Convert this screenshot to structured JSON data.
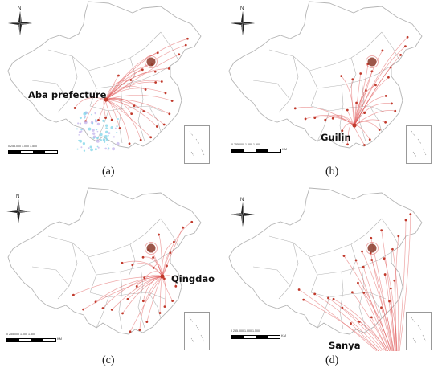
{
  "figure": {
    "panels": [
      {
        "caption": "(a)",
        "city": "Aba prefecture"
      },
      {
        "caption": "(b)",
        "city": "Guilin"
      },
      {
        "caption": "(c)",
        "city": "Qingdao"
      },
      {
        "caption": "(d)",
        "city": "Sanya"
      }
    ],
    "north_label": "N",
    "scale": {
      "ticks": "0   255.000      1.000      1.500",
      "unit": "KM"
    },
    "colors": {
      "flow": "#e05a5a",
      "boundary": "#b5b5b5",
      "node": "#c0392b",
      "hub": "#8b3a2a"
    }
  }
}
